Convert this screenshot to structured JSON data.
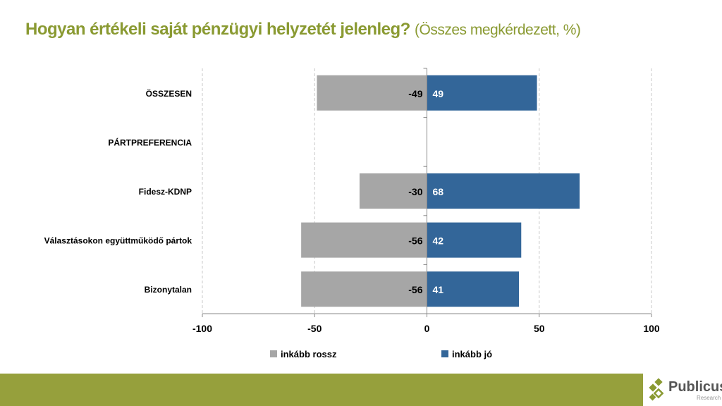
{
  "title": {
    "main": "Hogyan értékeli saját pénzügyi helyzetét jelenleg?",
    "sub": "(Összes megkérdezett, %)"
  },
  "chart_data": {
    "type": "bar",
    "orientation": "horizontal-diverging",
    "categories": [
      "ÖSSZESEN",
      "PÁRTPREFERENCIA",
      "Fidesz-KDNP",
      "Választásokon együttműködő pártok",
      "Bizonytalan"
    ],
    "series": [
      {
        "name": "inkább rossz",
        "color": "#a6a6a6",
        "values": [
          -49,
          null,
          -30,
          -56,
          -56
        ]
      },
      {
        "name": "inkább jó",
        "color": "#336699",
        "values": [
          49,
          null,
          68,
          42,
          41
        ]
      }
    ],
    "xlim": [
      -100,
      100
    ],
    "xticks": [
      -100,
      -50,
      0,
      50,
      100
    ],
    "xtick_labels": [
      "-100",
      "-50",
      "0",
      "50",
      "100"
    ],
    "grid": true,
    "legend": "bottom"
  },
  "logo": {
    "name": "Publicus",
    "sub": "Research"
  },
  "colors": {
    "title": "#8a9a32",
    "band": "#96a03c"
  }
}
